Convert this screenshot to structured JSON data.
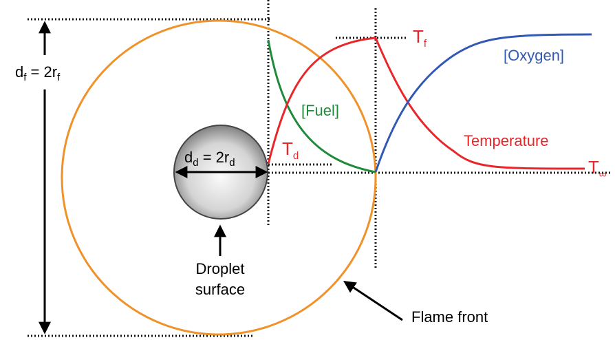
{
  "labels": {
    "flame_diameter": [
      "d",
      "f",
      " = 2r",
      "f"
    ],
    "droplet_diameter": [
      "d",
      "d",
      " = 2r",
      "d"
    ],
    "flame_temperature": [
      "T",
      "f"
    ],
    "droplet_temperature": [
      "T",
      "d"
    ],
    "ambient_temperature": [
      "T",
      "∞"
    ],
    "oxygen": "[Oxygen]",
    "fuel": "[Fuel]",
    "temperature": "Temperature",
    "droplet_surface": [
      "Droplet",
      "surface"
    ],
    "flame_front": "Flame front"
  }
}
